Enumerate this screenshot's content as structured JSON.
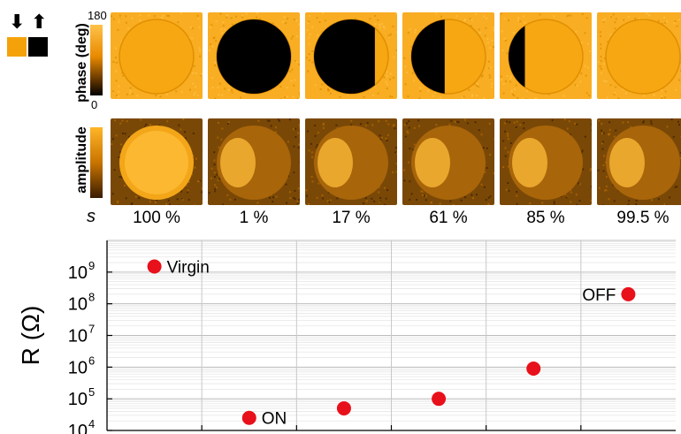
{
  "colors": {
    "domain_down": "#f5a20a",
    "domain_up": "#000000",
    "marker": "#e8101a",
    "tile_bright": "#f9ad22",
    "tile_dark": "#000000"
  },
  "legend": {
    "down_arrow": "⬇",
    "up_arrow": "⬆"
  },
  "phase_colorbar": {
    "label": "phase (deg)",
    "max": "180",
    "min": "0"
  },
  "amplitude_colorbar": {
    "label": "amplitude"
  },
  "s_symbol": "s",
  "tiles": [
    {
      "s": "100 %",
      "phase_dark_fraction": 0.0
    },
    {
      "s": "1 %",
      "phase_dark_fraction": 1.0
    },
    {
      "s": "17 %",
      "phase_dark_fraction": 0.82
    },
    {
      "s": "61 %",
      "phase_dark_fraction": 0.45
    },
    {
      "s": "85 %",
      "phase_dark_fraction": 0.22
    },
    {
      "s": "99.5 %",
      "phase_dark_fraction": 0.0
    }
  ],
  "chart_data": {
    "type": "scatter",
    "ylabel": "R (Ω)",
    "yscale": "log",
    "ylim": [
      10000,
      10000000000
    ],
    "y_ticks": [
      "10^4",
      "10^5",
      "10^6",
      "10^7",
      "10^8",
      "10^9"
    ],
    "grid": true,
    "x": [
      1,
      2,
      3,
      4,
      5,
      6
    ],
    "values": [
      1500000000,
      25000,
      50000,
      100000,
      900000,
      200000000
    ],
    "annotations": [
      {
        "index": 0,
        "text": "Virgin",
        "side": "right"
      },
      {
        "index": 1,
        "text": "ON",
        "side": "right"
      },
      {
        "index": 5,
        "text": "OFF",
        "side": "left"
      }
    ]
  }
}
